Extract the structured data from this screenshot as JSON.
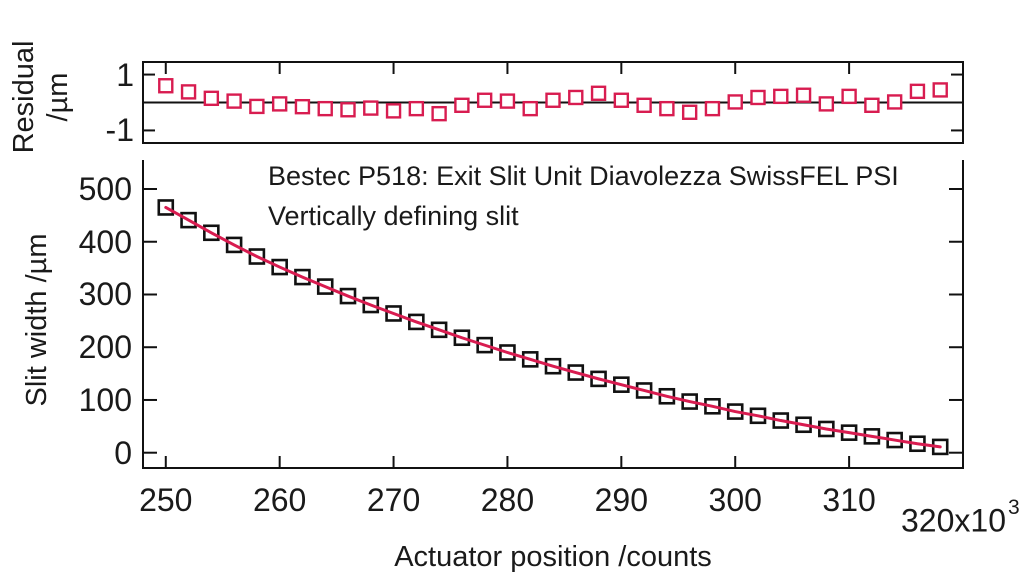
{
  "figure": {
    "title_line1": "Bestec P518: Exit Slit Unit Diavolezza SwissFEL PSI",
    "title_line2": "Vertically defining slit",
    "x_axis_label": "Actuator position /counts",
    "x_end_label_base": "320x10",
    "x_end_label_sup": "3",
    "residual_ylabel_line1": "Residual",
    "residual_ylabel_line2": "/µm",
    "main_ylabel": "Slit width /µm",
    "colors": {
      "accent_red": "#d81c50",
      "axis_black": "#111111",
      "background": "#ffffff"
    }
  },
  "chart_data": [
    {
      "id": "residual-panel",
      "type": "scatter",
      "marker": "open-square",
      "marker_color": "#d81c50",
      "x_unit": "actuator counts x10^3",
      "x": [
        250,
        252,
        254,
        256,
        258,
        260,
        262,
        264,
        266,
        268,
        270,
        272,
        274,
        276,
        278,
        280,
        282,
        284,
        286,
        288,
        290,
        292,
        294,
        296,
        298,
        300,
        302,
        304,
        306,
        308,
        310,
        312,
        314,
        316,
        318
      ],
      "values": [
        0.6,
        0.38,
        0.15,
        0.05,
        -0.14,
        -0.05,
        -0.15,
        -0.22,
        -0.26,
        -0.2,
        -0.3,
        -0.22,
        -0.4,
        -0.1,
        0.08,
        0.05,
        -0.22,
        0.08,
        0.18,
        0.33,
        0.08,
        -0.1,
        -0.22,
        -0.35,
        -0.22,
        0.02,
        0.18,
        0.22,
        0.26,
        -0.05,
        0.22,
        -0.1,
        0.02,
        0.4,
        0.45
      ],
      "ylabel": "Residual /µm",
      "ylim": [
        -1.45,
        1.45
      ],
      "yticks": [
        1,
        -1
      ],
      "zero_line": true,
      "xlim": [
        248,
        320
      ],
      "xticks": [
        250,
        260,
        270,
        280,
        290,
        300,
        310
      ],
      "grid": false,
      "legend": "none"
    },
    {
      "id": "calibration-panel",
      "type": "scatter",
      "marker": "open-square",
      "marker_color": "#111111",
      "fit_line": true,
      "fit_line_color": "#d81c50",
      "x_unit": "actuator counts x10^3",
      "x": [
        250,
        252,
        254,
        256,
        258,
        260,
        262,
        264,
        266,
        268,
        270,
        272,
        274,
        276,
        278,
        280,
        282,
        284,
        286,
        288,
        290,
        292,
        294,
        296,
        298,
        300,
        302,
        304,
        306,
        308,
        310,
        312,
        314,
        316,
        318
      ],
      "values": [
        465,
        441,
        417,
        394,
        372,
        352,
        333,
        315,
        297,
        280,
        264,
        248,
        233,
        218,
        204,
        190,
        177,
        164,
        152,
        140,
        129,
        118,
        107,
        97,
        88,
        78,
        70,
        61,
        53,
        45,
        38,
        31,
        24,
        17,
        11
      ],
      "xlabel": "Actuator position /counts",
      "ylabel": "Slit width /µm",
      "ylim": [
        -29,
        555
      ],
      "yticks": [
        0,
        100,
        200,
        300,
        400,
        500
      ],
      "xlim": [
        248,
        320
      ],
      "xticks": [
        250,
        260,
        270,
        280,
        290,
        300,
        310
      ],
      "x_end_annotation": "320x10³",
      "grid": false,
      "legend": "none"
    }
  ]
}
